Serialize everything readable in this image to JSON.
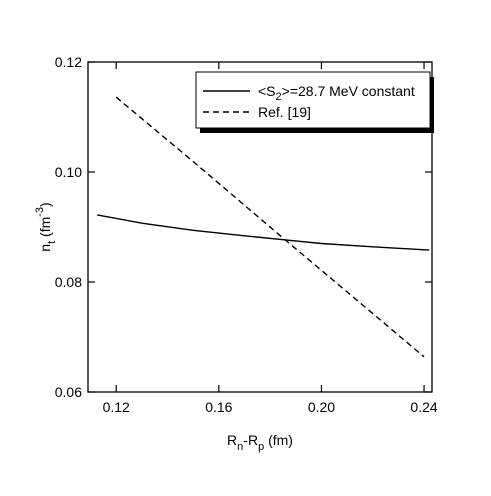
{
  "chart_data": {
    "type": "line",
    "xlabel": [
      "R",
      "n",
      "-R",
      "p",
      " (fm)"
    ],
    "ylabel": [
      "n",
      "t",
      " (fm",
      "-3",
      ")"
    ],
    "xlim": [
      0.109,
      0.2431
    ],
    "ylim": [
      0.06,
      0.12
    ],
    "xticks": [
      0.12,
      0.16,
      {
        "value": 0.2,
        "label": "0.20"
      },
      0.24
    ],
    "yticks": [
      0.06,
      0.08,
      {
        "value": 0.1,
        "label": "0.10"
      },
      0.12
    ],
    "legend": "upper right",
    "series": [
      {
        "name": [
          "<S",
          "2",
          ">=28.7 MeV constant"
        ],
        "color": "#000000",
        "dash": "solid",
        "x": [
          0.1126,
          0.13,
          0.15,
          0.17,
          0.185,
          0.2,
          0.22,
          0.242
        ],
        "values": [
          0.0922,
          0.0907,
          0.0894,
          0.0884,
          0.0877,
          0.087,
          0.0864,
          0.0858
        ]
      },
      {
        "name": [
          "Ref. [19]"
        ],
        "color": "#000000",
        "dash": "dashed",
        "x": [
          0.12,
          0.15,
          0.185,
          0.21,
          0.24
        ],
        "values": [
          0.1136,
          0.1019,
          0.088,
          0.0782,
          0.0664
        ]
      }
    ]
  }
}
